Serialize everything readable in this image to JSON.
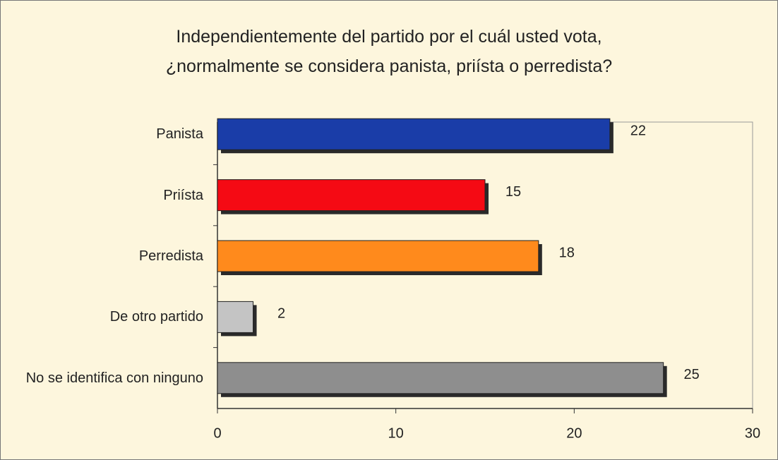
{
  "chart_data": {
    "type": "bar",
    "orientation": "horizontal",
    "title": "Independientemente del partido por el cuál usted vota,\n¿normalmente se considera panista, priísta o perredista?",
    "categories": [
      "Panista",
      "Priísta",
      "Perredista",
      "De otro partido",
      "No se identifica con ninguno"
    ],
    "values": [
      22,
      15,
      18,
      2,
      25
    ],
    "colors": [
      "#1a3da8",
      "#f50a14",
      "#ff8a1c",
      "#c4c4c4",
      "#8e8e8e"
    ],
    "xlim": [
      0,
      30
    ],
    "xticks": [
      0,
      10,
      20,
      30
    ],
    "grid": false
  }
}
